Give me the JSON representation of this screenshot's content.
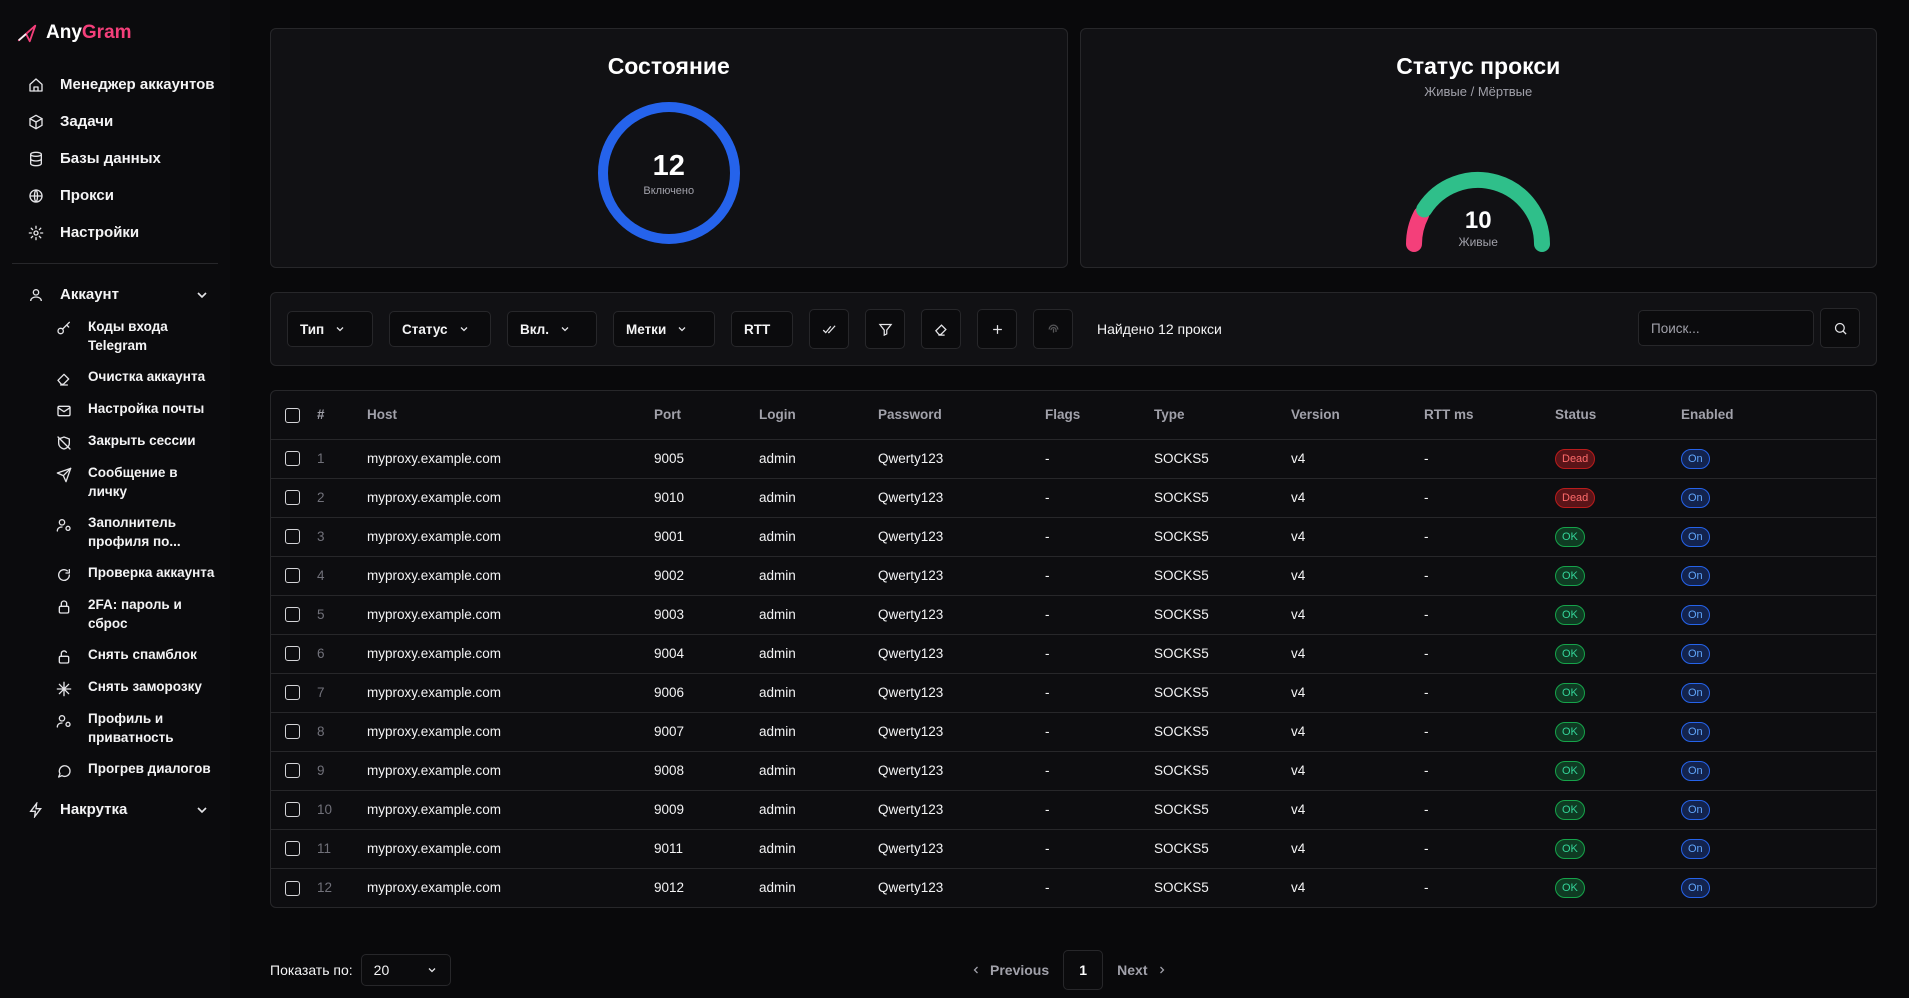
{
  "brand": {
    "part1": "Any",
    "part2": "Gram"
  },
  "sidebar": {
    "main_items": [
      {
        "label": "Менеджер аккаунтов",
        "icon": "home-icon"
      },
      {
        "label": "Задачи",
        "icon": "box-icon"
      },
      {
        "label": "Базы данных",
        "icon": "database-icon"
      },
      {
        "label": "Прокси",
        "icon": "globe-icon"
      },
      {
        "label": "Настройки",
        "icon": "gear-icon"
      }
    ],
    "account_group": {
      "label": "Аккаунт",
      "items": [
        {
          "label": "Коды входа Telegram",
          "icon": "key-icon"
        },
        {
          "label": "Очистка аккаунта",
          "icon": "eraser-icon"
        },
        {
          "label": "Настройка почты",
          "icon": "mail-icon"
        },
        {
          "label": "Закрыть сессии",
          "icon": "shield-off-icon"
        },
        {
          "label": "Сообщение в личку",
          "icon": "send-icon"
        },
        {
          "label": "Заполнитель профиля по...",
          "icon": "user-cog-icon"
        },
        {
          "label": "Проверка аккаунта",
          "icon": "refresh-icon"
        },
        {
          "label": "2FA: пароль и сброс",
          "icon": "lock-icon"
        },
        {
          "label": "Снять спамблок",
          "icon": "unlock-icon"
        },
        {
          "label": "Снять заморозку",
          "icon": "snowflake-icon"
        },
        {
          "label": "Профиль и приватность",
          "icon": "user-cog-icon"
        },
        {
          "label": "Прогрев диалогов",
          "icon": "message-icon"
        }
      ]
    },
    "boost_group": {
      "label": "Накрутка"
    }
  },
  "state_card": {
    "title": "Состояние",
    "value": "12",
    "label": "Включено"
  },
  "proxy_status_card": {
    "title": "Статус прокси",
    "subtitle": "Живые / Мёртвые",
    "value": "10",
    "label": "Живые",
    "alive": 10,
    "dead": 2
  },
  "colors": {
    "ring": "#2563eb",
    "alive": "#2fbf8a",
    "dead": "#f43f7a",
    "accent": "#f43f7a"
  },
  "toolbar": {
    "filters": [
      "Тип",
      "Статус",
      "Вкл.",
      "Метки",
      "RTT"
    ],
    "found_text": "Найдено 12 прокси",
    "search_placeholder": "Поиск..."
  },
  "table": {
    "columns": [
      "#",
      "Host",
      "Port",
      "Login",
      "Password",
      "Flags",
      "Type",
      "Version",
      "RTT ms",
      "Status",
      "Enabled"
    ],
    "rows": [
      {
        "n": "1",
        "host": "myproxy.example.com",
        "port": "9005",
        "login": "admin",
        "password": "Qwerty123",
        "flags": "-",
        "type": "SOCKS5",
        "version": "v4",
        "rtt": "-",
        "status": "Dead",
        "enabled": "On"
      },
      {
        "n": "2",
        "host": "myproxy.example.com",
        "port": "9010",
        "login": "admin",
        "password": "Qwerty123",
        "flags": "-",
        "type": "SOCKS5",
        "version": "v4",
        "rtt": "-",
        "status": "Dead",
        "enabled": "On"
      },
      {
        "n": "3",
        "host": "myproxy.example.com",
        "port": "9001",
        "login": "admin",
        "password": "Qwerty123",
        "flags": "-",
        "type": "SOCKS5",
        "version": "v4",
        "rtt": "-",
        "status": "OK",
        "enabled": "On"
      },
      {
        "n": "4",
        "host": "myproxy.example.com",
        "port": "9002",
        "login": "admin",
        "password": "Qwerty123",
        "flags": "-",
        "type": "SOCKS5",
        "version": "v4",
        "rtt": "-",
        "status": "OK",
        "enabled": "On"
      },
      {
        "n": "5",
        "host": "myproxy.example.com",
        "port": "9003",
        "login": "admin",
        "password": "Qwerty123",
        "flags": "-",
        "type": "SOCKS5",
        "version": "v4",
        "rtt": "-",
        "status": "OK",
        "enabled": "On"
      },
      {
        "n": "6",
        "host": "myproxy.example.com",
        "port": "9004",
        "login": "admin",
        "password": "Qwerty123",
        "flags": "-",
        "type": "SOCKS5",
        "version": "v4",
        "rtt": "-",
        "status": "OK",
        "enabled": "On"
      },
      {
        "n": "7",
        "host": "myproxy.example.com",
        "port": "9006",
        "login": "admin",
        "password": "Qwerty123",
        "flags": "-",
        "type": "SOCKS5",
        "version": "v4",
        "rtt": "-",
        "status": "OK",
        "enabled": "On"
      },
      {
        "n": "8",
        "host": "myproxy.example.com",
        "port": "9007",
        "login": "admin",
        "password": "Qwerty123",
        "flags": "-",
        "type": "SOCKS5",
        "version": "v4",
        "rtt": "-",
        "status": "OK",
        "enabled": "On"
      },
      {
        "n": "9",
        "host": "myproxy.example.com",
        "port": "9008",
        "login": "admin",
        "password": "Qwerty123",
        "flags": "-",
        "type": "SOCKS5",
        "version": "v4",
        "rtt": "-",
        "status": "OK",
        "enabled": "On"
      },
      {
        "n": "10",
        "host": "myproxy.example.com",
        "port": "9009",
        "login": "admin",
        "password": "Qwerty123",
        "flags": "-",
        "type": "SOCKS5",
        "version": "v4",
        "rtt": "-",
        "status": "OK",
        "enabled": "On"
      },
      {
        "n": "11",
        "host": "myproxy.example.com",
        "port": "9011",
        "login": "admin",
        "password": "Qwerty123",
        "flags": "-",
        "type": "SOCKS5",
        "version": "v4",
        "rtt": "-",
        "status": "OK",
        "enabled": "On"
      },
      {
        "n": "12",
        "host": "myproxy.example.com",
        "port": "9012",
        "login": "admin",
        "password": "Qwerty123",
        "flags": "-",
        "type": "SOCKS5",
        "version": "v4",
        "rtt": "-",
        "status": "OK",
        "enabled": "On"
      }
    ]
  },
  "footer": {
    "per_page_label": "Показать по:",
    "per_page_value": "20",
    "prev_label": "Previous",
    "current_page": "1",
    "next_label": "Next"
  }
}
